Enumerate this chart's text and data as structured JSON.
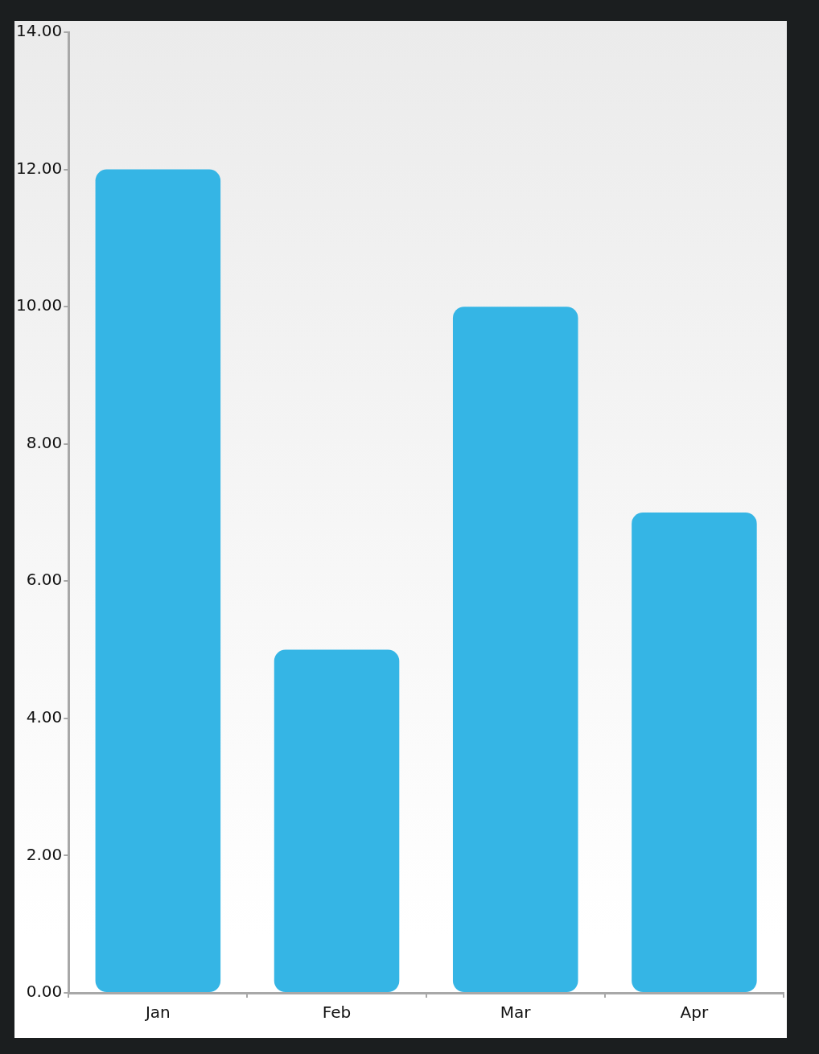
{
  "chart_data": {
    "type": "bar",
    "categories": [
      "Jan",
      "Feb",
      "Mar",
      "Apr"
    ],
    "values": [
      12,
      5,
      10,
      7
    ],
    "color": "#35b5e5",
    "ylim": [
      0,
      14
    ],
    "yticks": [
      {
        "value": 0,
        "label": "0.00"
      },
      {
        "value": 2,
        "label": "2.00"
      },
      {
        "value": 4,
        "label": "4.00"
      },
      {
        "value": 6,
        "label": "6.00"
      },
      {
        "value": 8,
        "label": "8.00"
      },
      {
        "value": 10,
        "label": "10.00"
      },
      {
        "value": 12,
        "label": "12.00"
      },
      {
        "value": 14,
        "label": "14.00"
      }
    ],
    "grid": false,
    "legend": false
  }
}
